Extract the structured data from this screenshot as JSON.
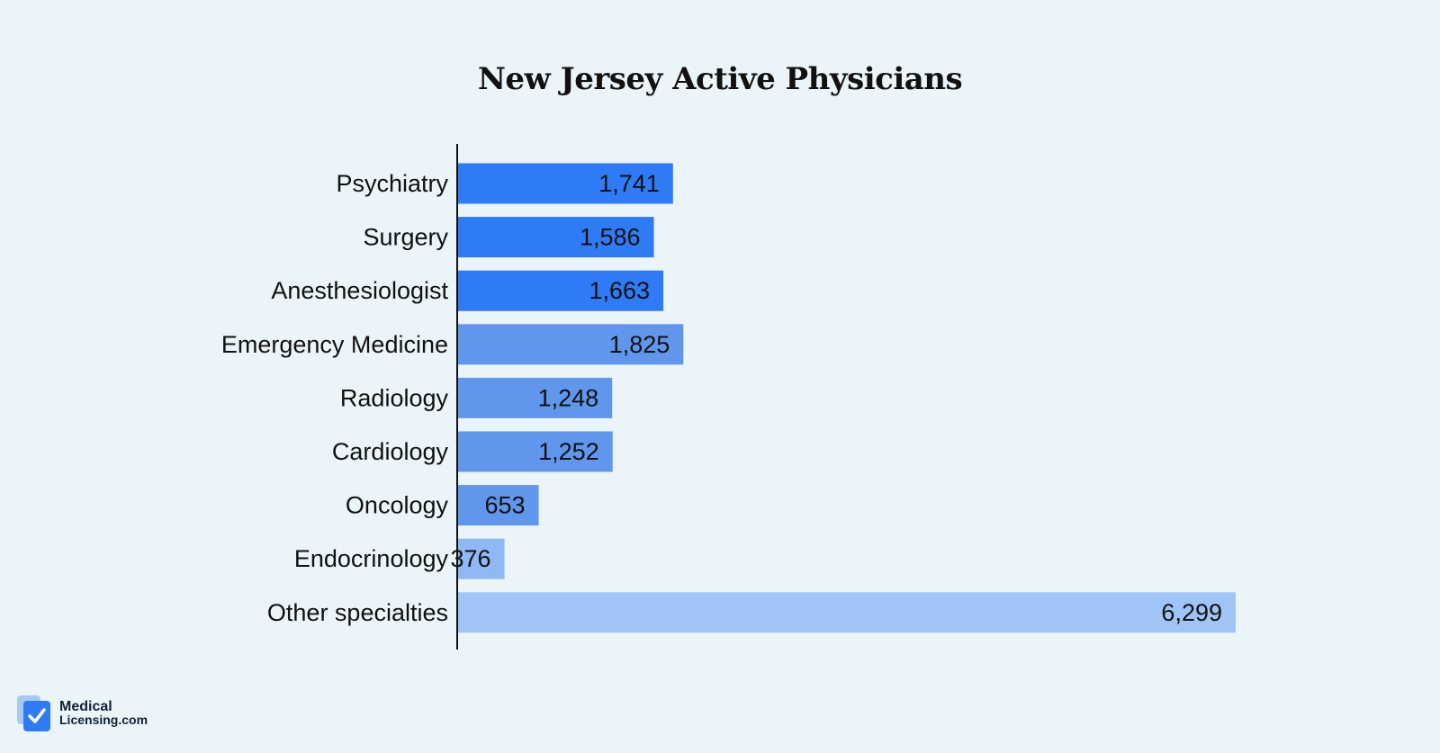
{
  "chart_data": {
    "type": "bar",
    "orientation": "horizontal",
    "title": "New Jersey Active Physicians",
    "categories": [
      "Psychiatry",
      "Surgery",
      "Anesthesiologist",
      "Emergency Medicine",
      "Radiology",
      "Cardiology",
      "Oncology",
      "Endocrinology",
      "Other specialties"
    ],
    "values": [
      1741,
      1586,
      1663,
      1825,
      1248,
      1252,
      653,
      376,
      6299
    ],
    "value_labels": [
      "1,741",
      "1,586",
      "1,663",
      "1,825",
      "1,248",
      "1,252",
      "653",
      "376",
      "6,299"
    ],
    "bar_colors": [
      "#2f7bf5",
      "#2f7bf5",
      "#2f7bf5",
      "#6097ec",
      "#6097ec",
      "#6097ec",
      "#6097ec",
      "#8fb8f4",
      "#a1c4f6"
    ],
    "xlim": [
      0,
      6299
    ],
    "grid": false,
    "legend": "none"
  },
  "logo": {
    "line1": "Medical",
    "line2": "Licensing.com",
    "icon": "checkmark-document-icon",
    "color": "#2f7bf5"
  }
}
